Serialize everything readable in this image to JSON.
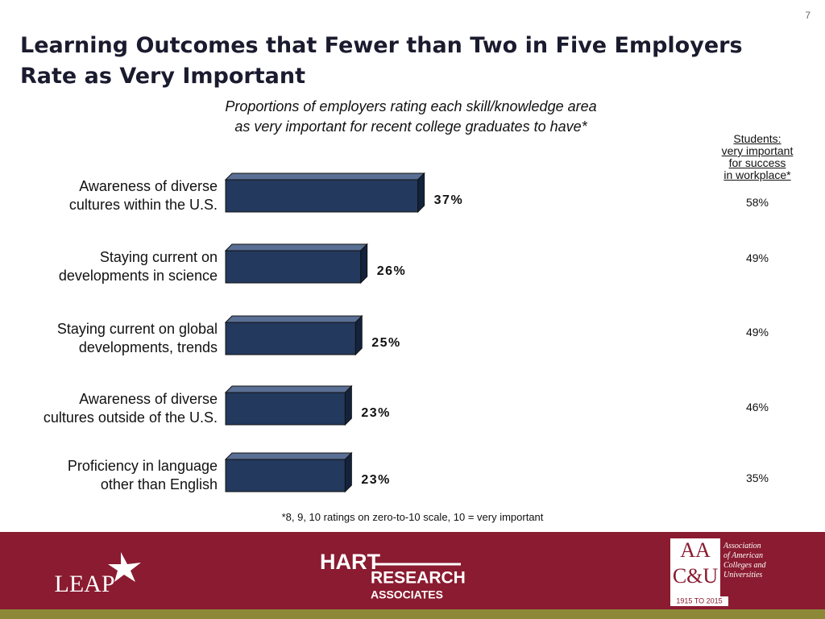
{
  "slide_number": "7",
  "chart_data": {
    "type": "bar",
    "orientation": "horizontal",
    "title": "Learning Outcomes that Fewer than Two in Five Employers\nRate as Very Important",
    "subtitle": "Proportions of employers rating each skill/knowledge area\nas very important for recent college graduates to have*",
    "categories": [
      "Awareness of diverse\ncultures within the U.S.",
      "Staying current on\ndevelopments in science",
      "Staying current on global\ndevelopments, trends",
      "Awareness of diverse\ncultures outside of the U.S.",
      "Proficiency in language\nother than English"
    ],
    "values": [
      37,
      26,
      25,
      23,
      23
    ],
    "value_labels": [
      "37%",
      "26%",
      "25%",
      "23%",
      "23%"
    ],
    "color": "#23395d",
    "students_header": "Students:\nvery important\nfor success\nin workplace*",
    "students_values": [
      58,
      49,
      49,
      46,
      35
    ],
    "students_value_labels": [
      "58%",
      "49%",
      "49%",
      "46%",
      "35%"
    ],
    "footnote": "*8, 9, 10 ratings on zero-to-10 scale, 10 = very important"
  },
  "footer": {
    "leap": "LEAP",
    "hart": "HART",
    "research": "RESEARCH",
    "associates": "ASSOCIATES",
    "aacu_top": "AA",
    "aacu_bottom": "C&U",
    "aacu_name": "Association\nof American\nColleges and\nUniversities",
    "aacu_years": "1915 TO 2015"
  }
}
